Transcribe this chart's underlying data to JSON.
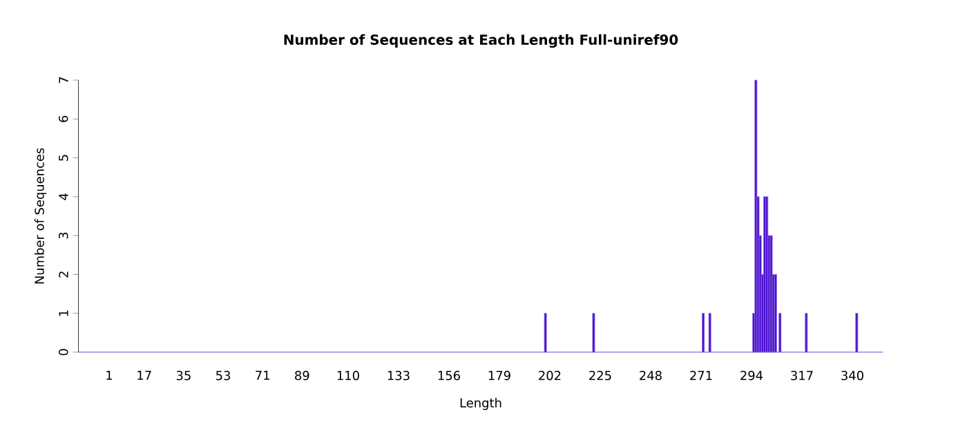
{
  "chart_data": {
    "type": "bar",
    "title": "Number of Sequences at Each Length  Full-uniref90",
    "xlabel": "Length",
    "ylabel": "Number of Sequences",
    "x": [
      200,
      222,
      272,
      275,
      295,
      296,
      297,
      298,
      299,
      300,
      301,
      302,
      303,
      304,
      305,
      307,
      319,
      342
    ],
    "values": [
      1,
      1,
      1,
      1,
      1,
      7,
      4,
      3,
      2,
      4,
      4,
      3,
      3,
      2,
      2,
      1,
      1,
      1
    ],
    "color": "#4a10d0",
    "xlim": [
      -13,
      354
    ],
    "xticks": [
      1,
      17,
      35,
      53,
      71,
      89,
      110,
      133,
      156,
      179,
      202,
      225,
      248,
      271,
      294,
      317,
      340
    ],
    "ylim": [
      0,
      7
    ],
    "yticks": [
      0,
      1,
      2,
      3,
      4,
      5,
      6,
      7
    ],
    "grid": false
  }
}
